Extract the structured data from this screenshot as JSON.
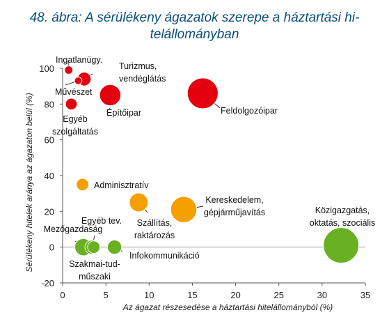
{
  "title_lines": [
    "48. ábra: A sérülékeny ágazatok szerepe a háztartási hi-",
    "telállományban"
  ],
  "chart_data": {
    "type": "scatter",
    "xlabel": "Az ágazat részesedése a háztartási hitelállományból (%)",
    "ylabel": "Sérülékeny hitelek aránya az ágazaton belül (%)",
    "xlim": [
      0,
      35
    ],
    "ylim": [
      -20,
      100
    ],
    "xticks": [
      0,
      5,
      10,
      15,
      20,
      25,
      30,
      35
    ],
    "yticks": [
      -20,
      0,
      20,
      40,
      60,
      80,
      100
    ],
    "grid": false,
    "colors": {
      "high": "#e3000f",
      "mid": "#f5a000",
      "low": "#6ab023",
      "outline": "#ffffff"
    },
    "points": [
      {
        "label": "Ingatlanügy.",
        "x": 0.7,
        "y": 99,
        "size": 0.15,
        "group": "high"
      },
      {
        "label": "Turizmus, vendéglátás",
        "x": 2.5,
        "y": 94,
        "size": 0.8,
        "group": "high"
      },
      {
        "label": "Művészet",
        "x": 1.8,
        "y": 93,
        "size": 0.1,
        "group": "high"
      },
      {
        "label": "Egyéb szolgáltatás",
        "x": 1.0,
        "y": 80,
        "size": 0.5,
        "group": "high"
      },
      {
        "label": "Építőipar",
        "x": 5.5,
        "y": 85,
        "size": 2.6,
        "group": "high"
      },
      {
        "label": "Feldolgozóipar",
        "x": 16.2,
        "y": 86,
        "size": 6.3,
        "group": "high"
      },
      {
        "label": "Adminisztratív",
        "x": 2.3,
        "y": 35,
        "size": 0.6,
        "group": "mid"
      },
      {
        "label": "Szállítás, raktározás",
        "x": 8.8,
        "y": 25,
        "size": 1.9,
        "group": "mid"
      },
      {
        "label": "Kereskedelem, gépjárműjavítás",
        "x": 14.0,
        "y": 21,
        "size": 4.3,
        "group": "mid"
      },
      {
        "label": "Mezőgazdaság",
        "x": 2.4,
        "y": 0,
        "size": 1.5,
        "group": "low"
      },
      {
        "label": "Egyéb tev.",
        "x": 3.4,
        "y": 0,
        "size": 0.9,
        "group": "low"
      },
      {
        "label": "Szakmai-tud-műszaki",
        "x": 3.6,
        "y": 0,
        "size": 0.6,
        "group": "low"
      },
      {
        "label": "Infokommunikáció",
        "x": 6.0,
        "y": 0,
        "size": 0.9,
        "group": "low"
      },
      {
        "label": "Közigazgatás, oktatás, szociális",
        "x": 32.2,
        "y": 1,
        "size": 8.7,
        "group": "low"
      }
    ]
  }
}
